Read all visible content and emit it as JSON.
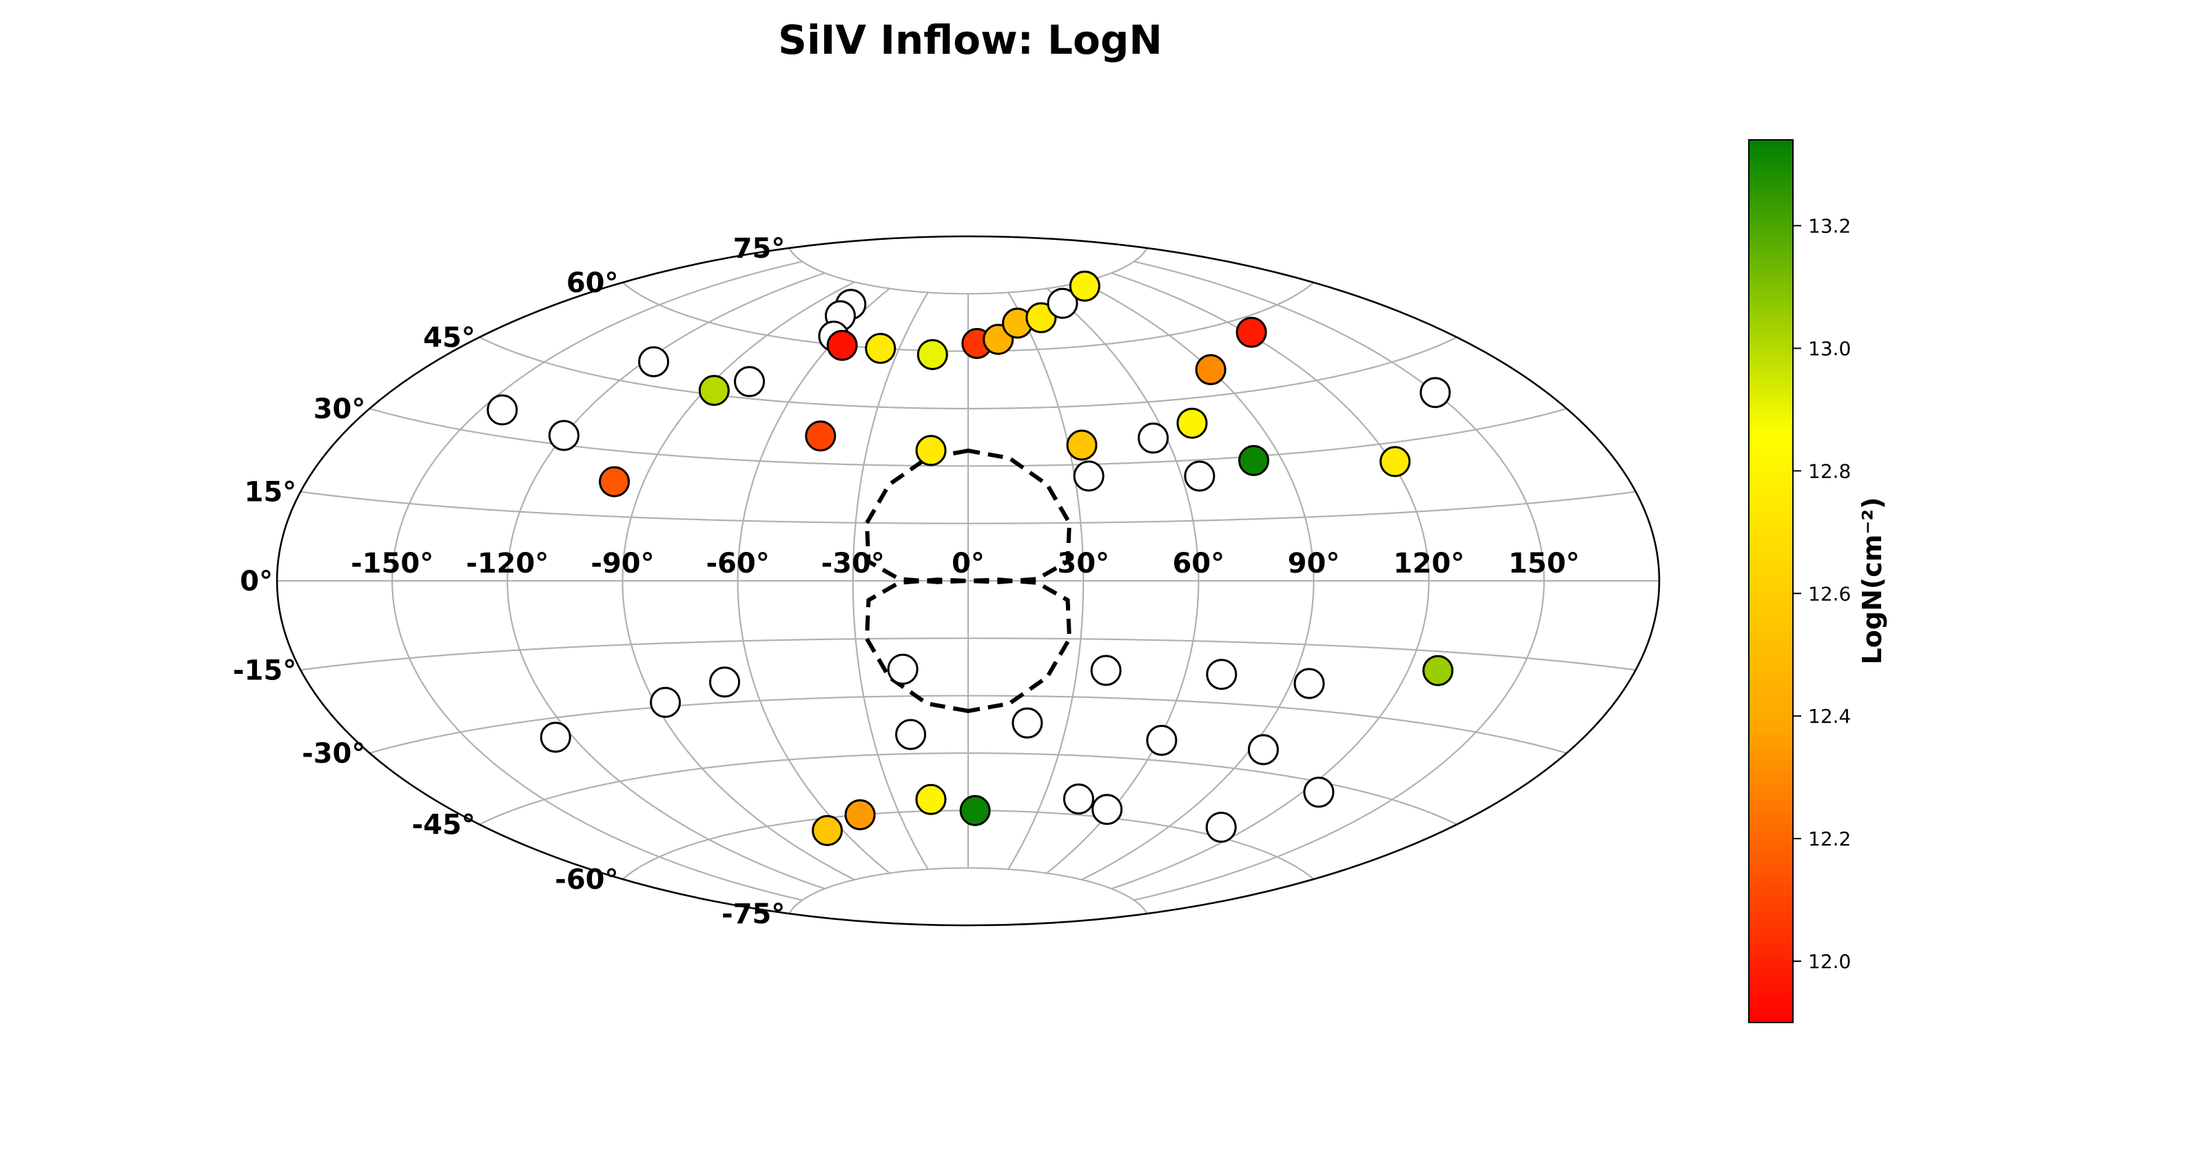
{
  "chart_data": {
    "type": "scatter",
    "projection": "aitoff",
    "title": "SiIV Inflow: LogN",
    "lon_ticks": [
      "-150°",
      "-120°",
      "-90°",
      "-60°",
      "-30°",
      "0°",
      "30°",
      "60°",
      "90°",
      "120°",
      "150°"
    ],
    "lat_ticks": [
      {
        "lat": 75,
        "label": "75°"
      },
      {
        "lat": 60,
        "label": "60°"
      },
      {
        "lat": 45,
        "label": "45°"
      },
      {
        "lat": 30,
        "label": "30°"
      },
      {
        "lat": 15,
        "label": "15°"
      },
      {
        "lat": 0,
        "label": "0°"
      },
      {
        "lat": -15,
        "label": "-15°"
      },
      {
        "lat": -30,
        "label": "-30°"
      },
      {
        "lat": -45,
        "label": "-45°"
      },
      {
        "lat": -60,
        "label": "-60°"
      },
      {
        "lat": -75,
        "label": "-75°"
      }
    ],
    "grid": true,
    "colorbar": {
      "label": "LogN(cm⁻²)",
      "range": [
        11.9,
        13.34
      ],
      "ticks": [
        "12.0",
        "12.2",
        "12.4",
        "12.6",
        "12.8",
        "13.0",
        "13.2"
      ],
      "colormap": [
        "#ff0000",
        "#ffa500",
        "#ffff00",
        "#008000"
      ]
    },
    "regions": [
      {
        "name": "north-bubble",
        "points": [
          [
            0,
            34
          ],
          [
            -12,
            32
          ],
          [
            -22,
            25
          ],
          [
            -27,
            15
          ],
          [
            -26,
            5
          ],
          [
            -18,
            0.5
          ],
          [
            -8,
            -0.3
          ],
          [
            0,
            0
          ],
          [
            8,
            -0.3
          ],
          [
            18,
            0.5
          ],
          [
            26,
            5
          ],
          [
            27,
            15
          ],
          [
            22,
            25
          ],
          [
            12,
            32
          ],
          [
            0,
            34
          ]
        ]
      },
      {
        "name": "south-bubble",
        "points": [
          [
            0,
            -34
          ],
          [
            -12,
            -32
          ],
          [
            -22,
            -25
          ],
          [
            -27,
            -15
          ],
          [
            -26,
            -5
          ],
          [
            -18,
            -0.5
          ],
          [
            -8,
            0.3
          ],
          [
            0,
            0
          ],
          [
            8,
            0.3
          ],
          [
            18,
            -0.5
          ],
          [
            26,
            -5
          ],
          [
            27,
            -15
          ],
          [
            22,
            -25
          ],
          [
            12,
            -32
          ],
          [
            0,
            -34
          ]
        ]
      }
    ],
    "points": [
      {
        "lon": -144,
        "lat": 35,
        "logN": null
      },
      {
        "lon": -120,
        "lat": 32,
        "logN": null
      },
      {
        "lon": -117,
        "lat": 50,
        "logN": null
      },
      {
        "lon": -87,
        "lat": 46,
        "logN": 13.0
      },
      {
        "lon": -98,
        "lat": 23,
        "logN": 12.15
      },
      {
        "lon": -78,
        "lat": 49,
        "logN": null
      },
      {
        "lon": -71,
        "lat": 70,
        "logN": null
      },
      {
        "lon": -69,
        "lat": 67,
        "logN": null
      },
      {
        "lon": -62,
        "lat": 62,
        "logN": null
      },
      {
        "lon": -55,
        "lat": 60,
        "logN": 11.95
      },
      {
        "lon": -45,
        "lat": 37,
        "logN": 12.1
      },
      {
        "lon": -38,
        "lat": 60,
        "logN": 12.75
      },
      {
        "lon": -15,
        "lat": 59,
        "logN": 12.9
      },
      {
        "lon": -11,
        "lat": 34,
        "logN": 12.75
      },
      {
        "lon": 4,
        "lat": 62,
        "logN": 12.05
      },
      {
        "lon": 14,
        "lat": 63,
        "logN": 12.45
      },
      {
        "lon": 26,
        "lat": 67,
        "logN": 12.5
      },
      {
        "lon": 40,
        "lat": 68,
        "logN": 12.75
      },
      {
        "lon": 59,
        "lat": 71,
        "logN": null
      },
      {
        "lon": 87,
        "lat": 74,
        "logN": 12.8
      },
      {
        "lon": 34,
        "lat": 35,
        "logN": 12.55
      },
      {
        "lon": 34,
        "lat": 27,
        "logN": null
      },
      {
        "lon": 56,
        "lat": 36,
        "logN": null
      },
      {
        "lon": 65,
        "lat": 26,
        "logN": null
      },
      {
        "lon": 70,
        "lat": 39,
        "logN": 12.8
      },
      {
        "lon": 82,
        "lat": 29,
        "logN": 13.32
      },
      {
        "lon": 90,
        "lat": 51,
        "logN": 12.3
      },
      {
        "lon": 122,
        "lat": 57,
        "logN": 11.98
      },
      {
        "lon": 121,
        "lat": 26,
        "logN": 12.75
      },
      {
        "lon": 150,
        "lat": 38,
        "logN": null
      },
      {
        "lon": 128,
        "lat": -19,
        "logN": 13.05
      },
      {
        "lon": -125,
        "lat": -34,
        "logN": null
      },
      {
        "lon": -87,
        "lat": -29,
        "logN": null
      },
      {
        "lon": -68,
        "lat": -25,
        "logN": null
      },
      {
        "lon": -18,
        "lat": -23,
        "logN": null
      },
      {
        "lon": -18,
        "lat": -40,
        "logN": null
      },
      {
        "lon": -15,
        "lat": -57,
        "logN": 12.8
      },
      {
        "lon": -47,
        "lat": -60,
        "logN": 12.35
      },
      {
        "lon": -67,
        "lat": -63,
        "logN": 12.55
      },
      {
        "lon": 3,
        "lat": -60,
        "logN": 13.32
      },
      {
        "lon": 18,
        "lat": -37,
        "logN": null
      },
      {
        "lon": 38,
        "lat": -23,
        "logN": null
      },
      {
        "lon": 70,
        "lat": -23,
        "logN": null
      },
      {
        "lon": 95,
        "lat": -24,
        "logN": null
      },
      {
        "lon": 61,
        "lat": -40,
        "logN": null
      },
      {
        "lon": 94,
        "lat": -40,
        "logN": null
      },
      {
        "lon": 44,
        "lat": -56,
        "logN": null
      },
      {
        "lon": 58,
        "lat": -58,
        "logN": null
      },
      {
        "lon": 125,
        "lat": -47,
        "logN": null
      },
      {
        "lon": 110,
        "lat": -58,
        "logN": null
      }
    ]
  }
}
